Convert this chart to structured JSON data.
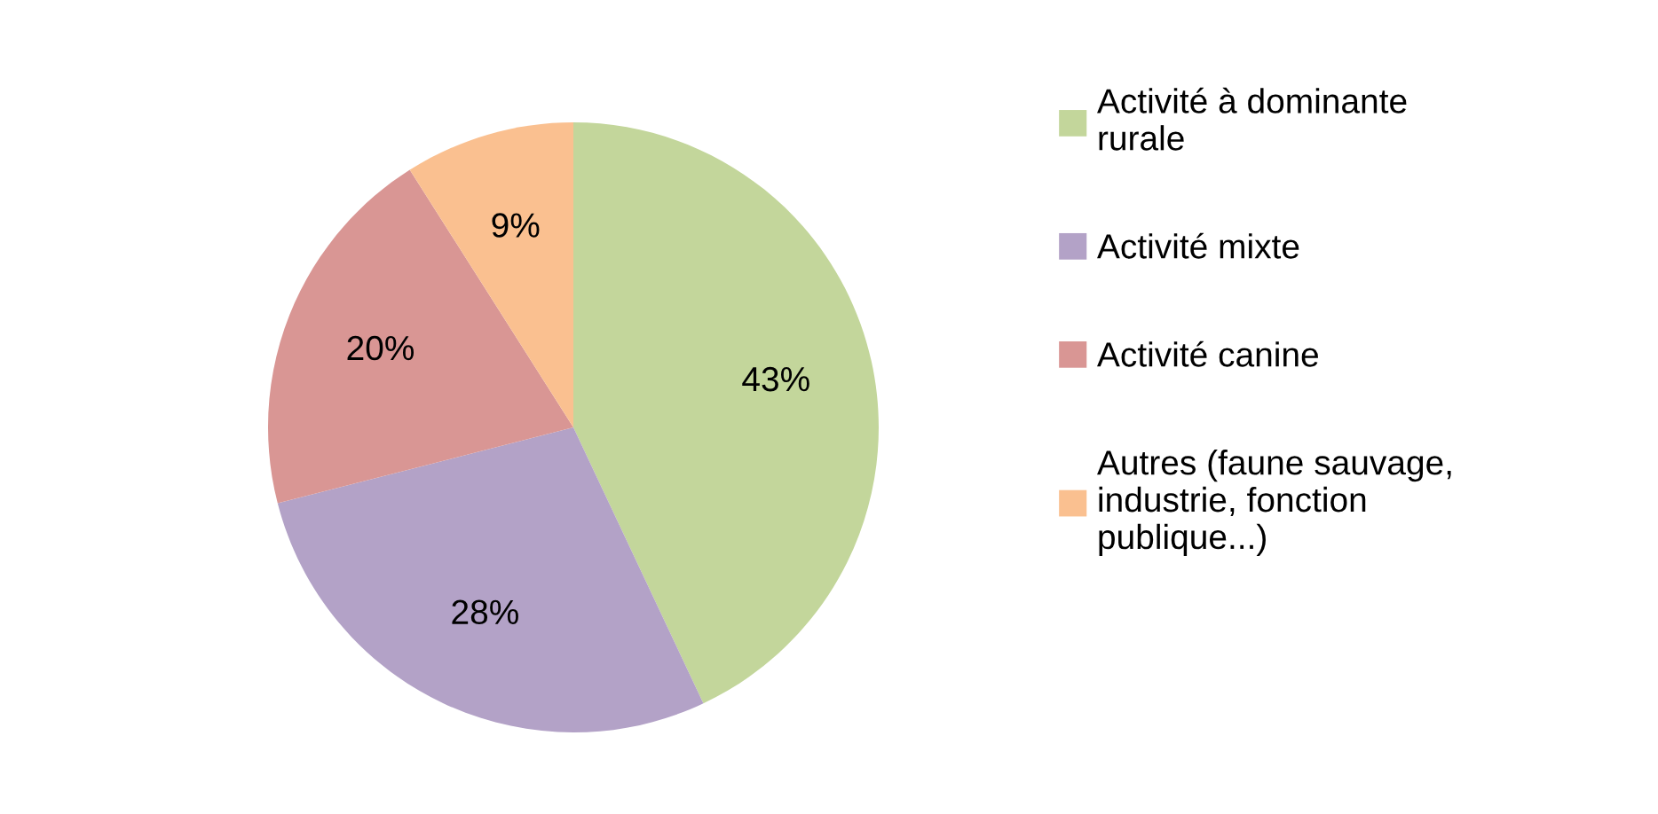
{
  "chart_data": {
    "type": "pie",
    "categories": [
      "Activité à dominante rurale",
      "Activité mixte",
      "Activité canine",
      "Autres (faune sauvage, industrie, fonction publique...)"
    ],
    "values": [
      43,
      28,
      20,
      9
    ],
    "value_labels": [
      "43%",
      "28%",
      "20%",
      "9%"
    ],
    "colors": [
      "#c3d69b",
      "#b3a2c7",
      "#d99694",
      "#fac090"
    ],
    "legend": "right"
  }
}
